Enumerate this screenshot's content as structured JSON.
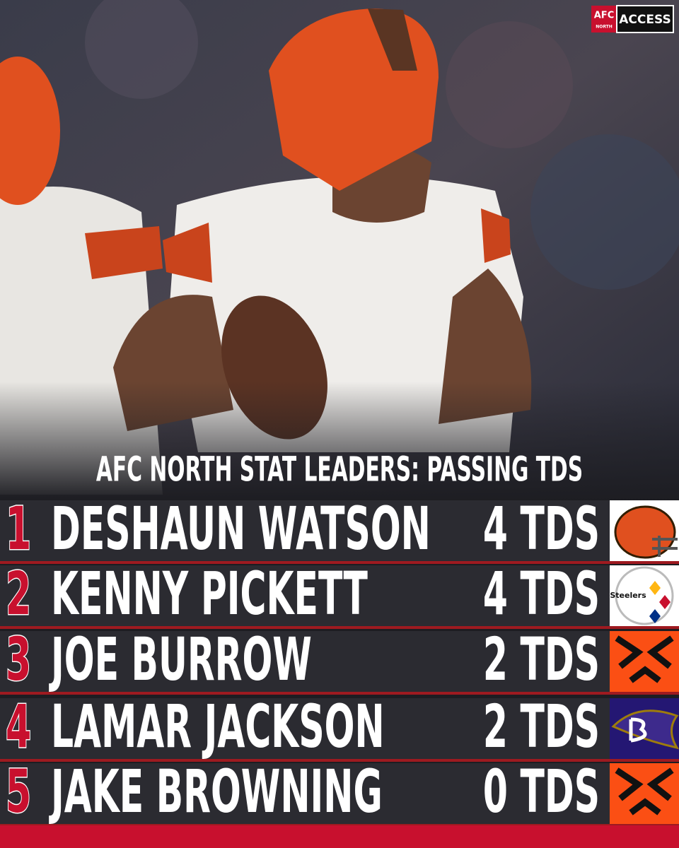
{
  "header": {
    "logo": {
      "emblem": "AFC",
      "division": "NORTH",
      "brand": "ACCESS"
    }
  },
  "title": "AFC NORTH STAT LEADERS: PASSING TDS",
  "table": {
    "rows": [
      {
        "rank": 1,
        "name": "DESHAUN WATSON",
        "stat": "4 TDS"
      },
      {
        "rank": 2,
        "name": "KENNY PICKETT",
        "stat": "4 TDS"
      },
      {
        "rank": 3,
        "name": "JOE BURROW",
        "stat": "2 TDS"
      },
      {
        "rank": 4,
        "name": "LAMAR JACKSON",
        "stat": "2 TDS"
      },
      {
        "rank": 5,
        "name": "JAKE BROWNING",
        "stat": "0 TDS"
      }
    ]
  },
  "logos": {
    "steelers": "Steelers"
  }
}
